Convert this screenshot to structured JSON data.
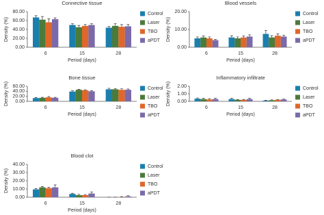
{
  "chart_data": [
    {
      "type": "bar",
      "title": "Connective tissue",
      "x_label": "Period (days)",
      "y_label": "Density (%)",
      "categories": [
        "6",
        "15",
        "28"
      ],
      "ylim": [
        0,
        80
      ],
      "yticks": [
        {
          "value": 0,
          "label": "0.00"
        },
        {
          "value": 20,
          "label": "20.00"
        },
        {
          "value": 40,
          "label": "40.00"
        },
        {
          "value": 60,
          "label": "60.00"
        },
        {
          "value": 80,
          "label": "80.00"
        }
      ],
      "series": [
        {
          "name": "Control",
          "color": "#1b7fae",
          "values": [
            67,
            50,
            44
          ],
          "errors": [
            4,
            3,
            3
          ]
        },
        {
          "name": "Laser",
          "color": "#4b7b3a",
          "values": [
            62,
            45,
            48
          ],
          "errors": [
            7,
            4,
            5
          ]
        },
        {
          "name": "TBO",
          "color": "#e0672a",
          "values": [
            56,
            48,
            46
          ],
          "errors": [
            8,
            3,
            5
          ]
        },
        {
          "name": "aPDT",
          "color": "#7b6aa9",
          "values": [
            63,
            50,
            47
          ],
          "errors": [
            3,
            3,
            4
          ]
        }
      ]
    },
    {
      "type": "bar",
      "title": "Blood vessels",
      "x_label": "Period (days)",
      "y_label": "Density (%)",
      "categories": [
        "6",
        "15",
        "28"
      ],
      "ylim": [
        0,
        20
      ],
      "yticks": [
        {
          "value": 0,
          "label": "0.00"
        },
        {
          "value": 10,
          "label": "10.00"
        },
        {
          "value": 20,
          "label": "20.00"
        }
      ],
      "series": [
        {
          "name": "Control",
          "color": "#1b7fae",
          "values": [
            5,
            5.5,
            7.5
          ],
          "errors": [
            0.8,
            1,
            2
          ]
        },
        {
          "name": "Laser",
          "color": "#4b7b3a",
          "values": [
            5.5,
            5,
            5.5
          ],
          "errors": [
            0.8,
            0.8,
            1
          ]
        },
        {
          "name": "TBO",
          "color": "#e0672a",
          "values": [
            5,
            5.5,
            6.5
          ],
          "errors": [
            0.8,
            0.8,
            1
          ]
        },
        {
          "name": "aPDT",
          "color": "#7b6aa9",
          "values": [
            4,
            6,
            6
          ],
          "errors": [
            0.5,
            1,
            0.8
          ]
        }
      ]
    },
    {
      "type": "bar",
      "title": "Bone tissue",
      "x_label": "Period (days)",
      "y_label": "Density (%)",
      "categories": [
        "6",
        "15",
        "28"
      ],
      "ylim": [
        0,
        60
      ],
      "yticks": [
        {
          "value": 0,
          "label": "0.00"
        },
        {
          "value": 20,
          "label": "20.00"
        },
        {
          "value": 40,
          "label": "40.00"
        },
        {
          "value": 60,
          "label": "60.00"
        }
      ],
      "series": [
        {
          "name": "Control",
          "color": "#1b7fae",
          "values": [
            13,
            39,
            48
          ],
          "errors": [
            2,
            3,
            4
          ]
        },
        {
          "name": "Laser",
          "color": "#4b7b3a",
          "values": [
            14,
            46,
            48
          ],
          "errors": [
            2,
            2,
            3
          ]
        },
        {
          "name": "TBO",
          "color": "#e0672a",
          "values": [
            16,
            44,
            46
          ],
          "errors": [
            3,
            2,
            4
          ]
        },
        {
          "name": "aPDT",
          "color": "#7b6aa9",
          "values": [
            14,
            40,
            46
          ],
          "errors": [
            2,
            3,
            3
          ]
        }
      ]
    },
    {
      "type": "bar",
      "title": "Inflammatory infiltrate",
      "x_label": "Period (days)",
      "y_label": "Density (%)",
      "categories": [
        "6",
        "15",
        "28"
      ],
      "ylim": [
        0,
        2
      ],
      "yticks": [
        {
          "value": 0,
          "label": "0.00"
        },
        {
          "value": 1,
          "label": "1.00"
        },
        {
          "value": 2,
          "label": "2.00"
        }
      ],
      "series": [
        {
          "name": "Control",
          "color": "#1b7fae",
          "values": [
            0.35,
            0.3,
            0.1
          ],
          "errors": [
            0.1,
            0.1,
            0.05
          ]
        },
        {
          "name": "Laser",
          "color": "#4b7b3a",
          "values": [
            0.3,
            0.2,
            0.15
          ],
          "errors": [
            0.1,
            0.05,
            0.05
          ]
        },
        {
          "name": "TBO",
          "color": "#e0672a",
          "values": [
            0.25,
            0.2,
            0.2
          ],
          "errors": [
            0.1,
            0.05,
            0.05
          ]
        },
        {
          "name": "aPDT",
          "color": "#7b6aa9",
          "values": [
            0.3,
            0.3,
            0.25
          ],
          "errors": [
            0.1,
            0.1,
            0.05
          ]
        }
      ]
    },
    {
      "type": "bar",
      "title": "Blood clot",
      "x_label": "Period (days)",
      "y_label": "Density (%)",
      "categories": [
        "6",
        "15",
        "28"
      ],
      "ylim": [
        0,
        40
      ],
      "yticks": [
        {
          "value": 0,
          "label": "0.00"
        },
        {
          "value": 10,
          "label": "10.00"
        },
        {
          "value": 20,
          "label": "20.00"
        },
        {
          "value": 30,
          "label": "30.00"
        },
        {
          "value": 40,
          "label": "40.00"
        }
      ],
      "series": [
        {
          "name": "Control",
          "color": "#1b7fae",
          "values": [
            9.5,
            4,
            0
          ],
          "errors": [
            1,
            0.8,
            0.1
          ]
        },
        {
          "name": "Laser",
          "color": "#4b7b3a",
          "values": [
            12,
            2.5,
            0
          ],
          "errors": [
            1,
            1,
            0.1
          ]
        },
        {
          "name": "TBO",
          "color": "#e0672a",
          "values": [
            11,
            2.5,
            0.3
          ],
          "errors": [
            1,
            0.8,
            0.3
          ]
        },
        {
          "name": "aPDT",
          "color": "#7b6aa9",
          "values": [
            12,
            4.5,
            1
          ],
          "errors": [
            3,
            2,
            0.8
          ]
        }
      ]
    }
  ]
}
